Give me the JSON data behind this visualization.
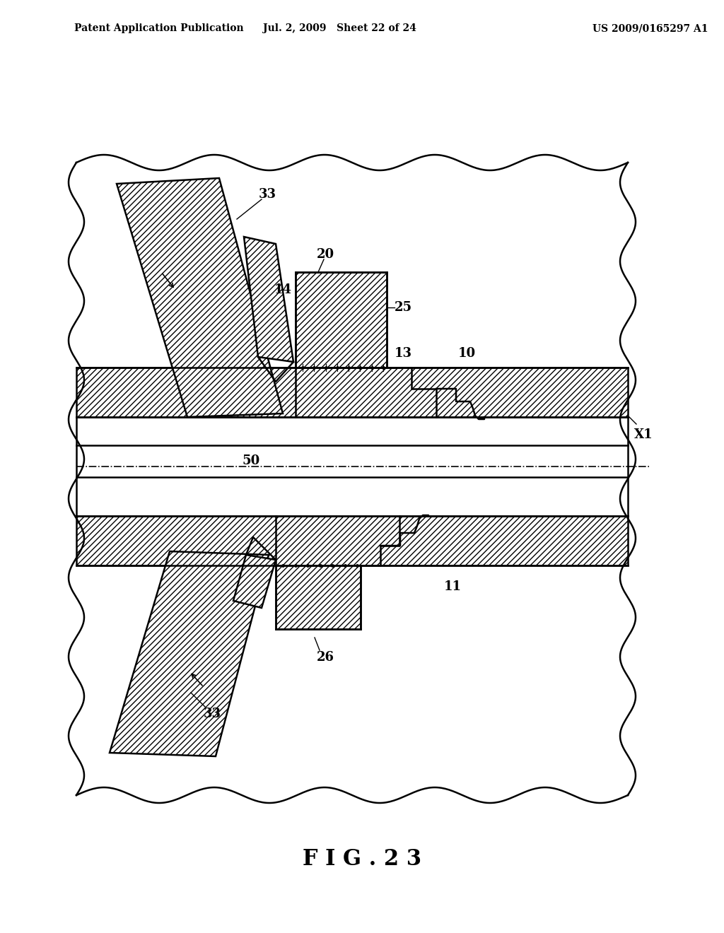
{
  "title_left": "Patent Application Publication",
  "title_mid": "Jul. 2, 2009   Sheet 22 of 24",
  "title_right": "US 2009/0165297 A1",
  "fig_label": "F I G . 2 3",
  "bg_color": "#ffffff",
  "line_color": "#000000",
  "labels": {
    "33_top": "33",
    "14": "14",
    "20": "20",
    "25": "25",
    "13": "13",
    "10": "10",
    "50": "50",
    "X1": "X1",
    "26": "26",
    "11": "11",
    "33_bot": "33"
  }
}
